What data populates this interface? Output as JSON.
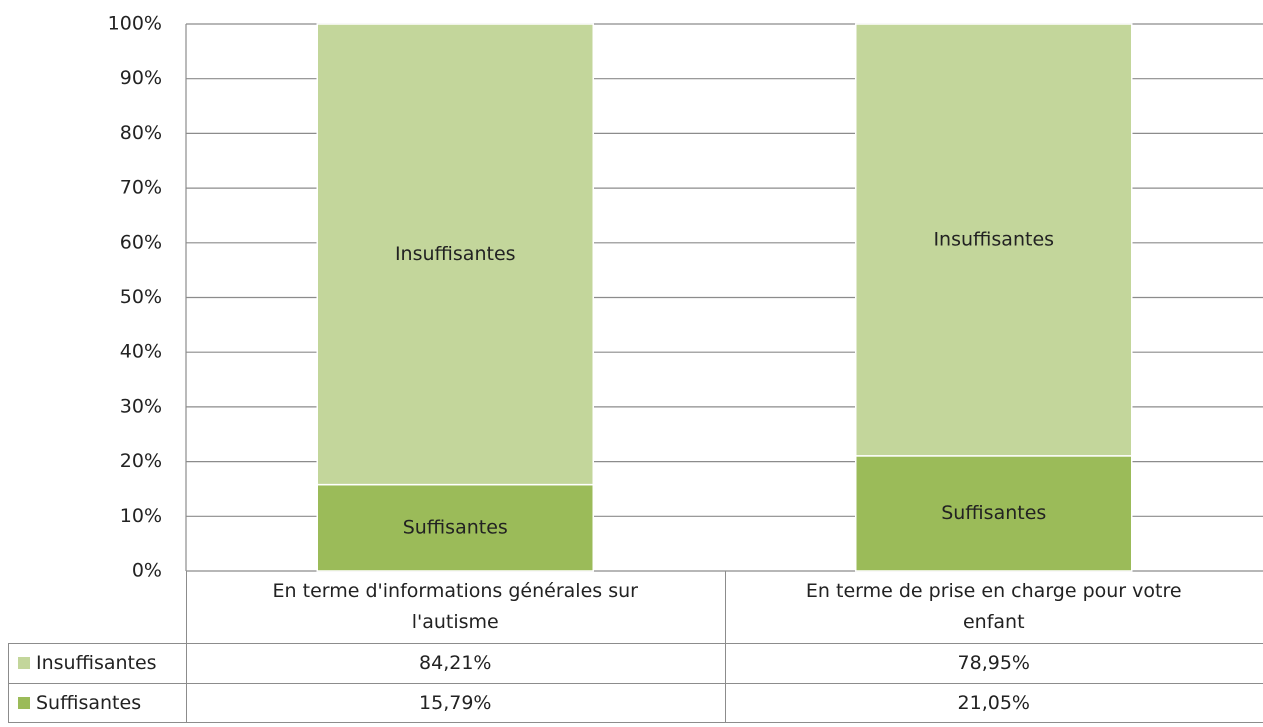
{
  "chart_data": {
    "type": "stacked_bar",
    "categories": [
      "En terme d'informations générales sur l'autisme",
      "En terme de prise en charge pour votre enfant"
    ],
    "series": [
      {
        "name": "Insuffisantes",
        "color": "#c3d69b",
        "values": [
          84.21,
          78.95
        ],
        "value_labels": [
          "84,21%",
          "78,95%"
        ]
      },
      {
        "name": "Suffisantes",
        "color": "#9bbb59",
        "values": [
          15.79,
          21.05
        ],
        "value_labels": [
          "15,79%",
          "21,05%"
        ]
      }
    ],
    "ylim": [
      0,
      100
    ],
    "yticks": [
      {
        "value": 0,
        "label": "0%"
      },
      {
        "value": 10,
        "label": "10%"
      },
      {
        "value": 20,
        "label": "20%"
      },
      {
        "value": 30,
        "label": "30%"
      },
      {
        "value": 40,
        "label": "40%"
      },
      {
        "value": 50,
        "label": "50%"
      },
      {
        "value": 60,
        "label": "60%"
      },
      {
        "value": 70,
        "label": "70%"
      },
      {
        "value": 80,
        "label": "80%"
      },
      {
        "value": 90,
        "label": "90%"
      },
      {
        "value": 100,
        "label": "100%"
      }
    ],
    "grid": true
  }
}
